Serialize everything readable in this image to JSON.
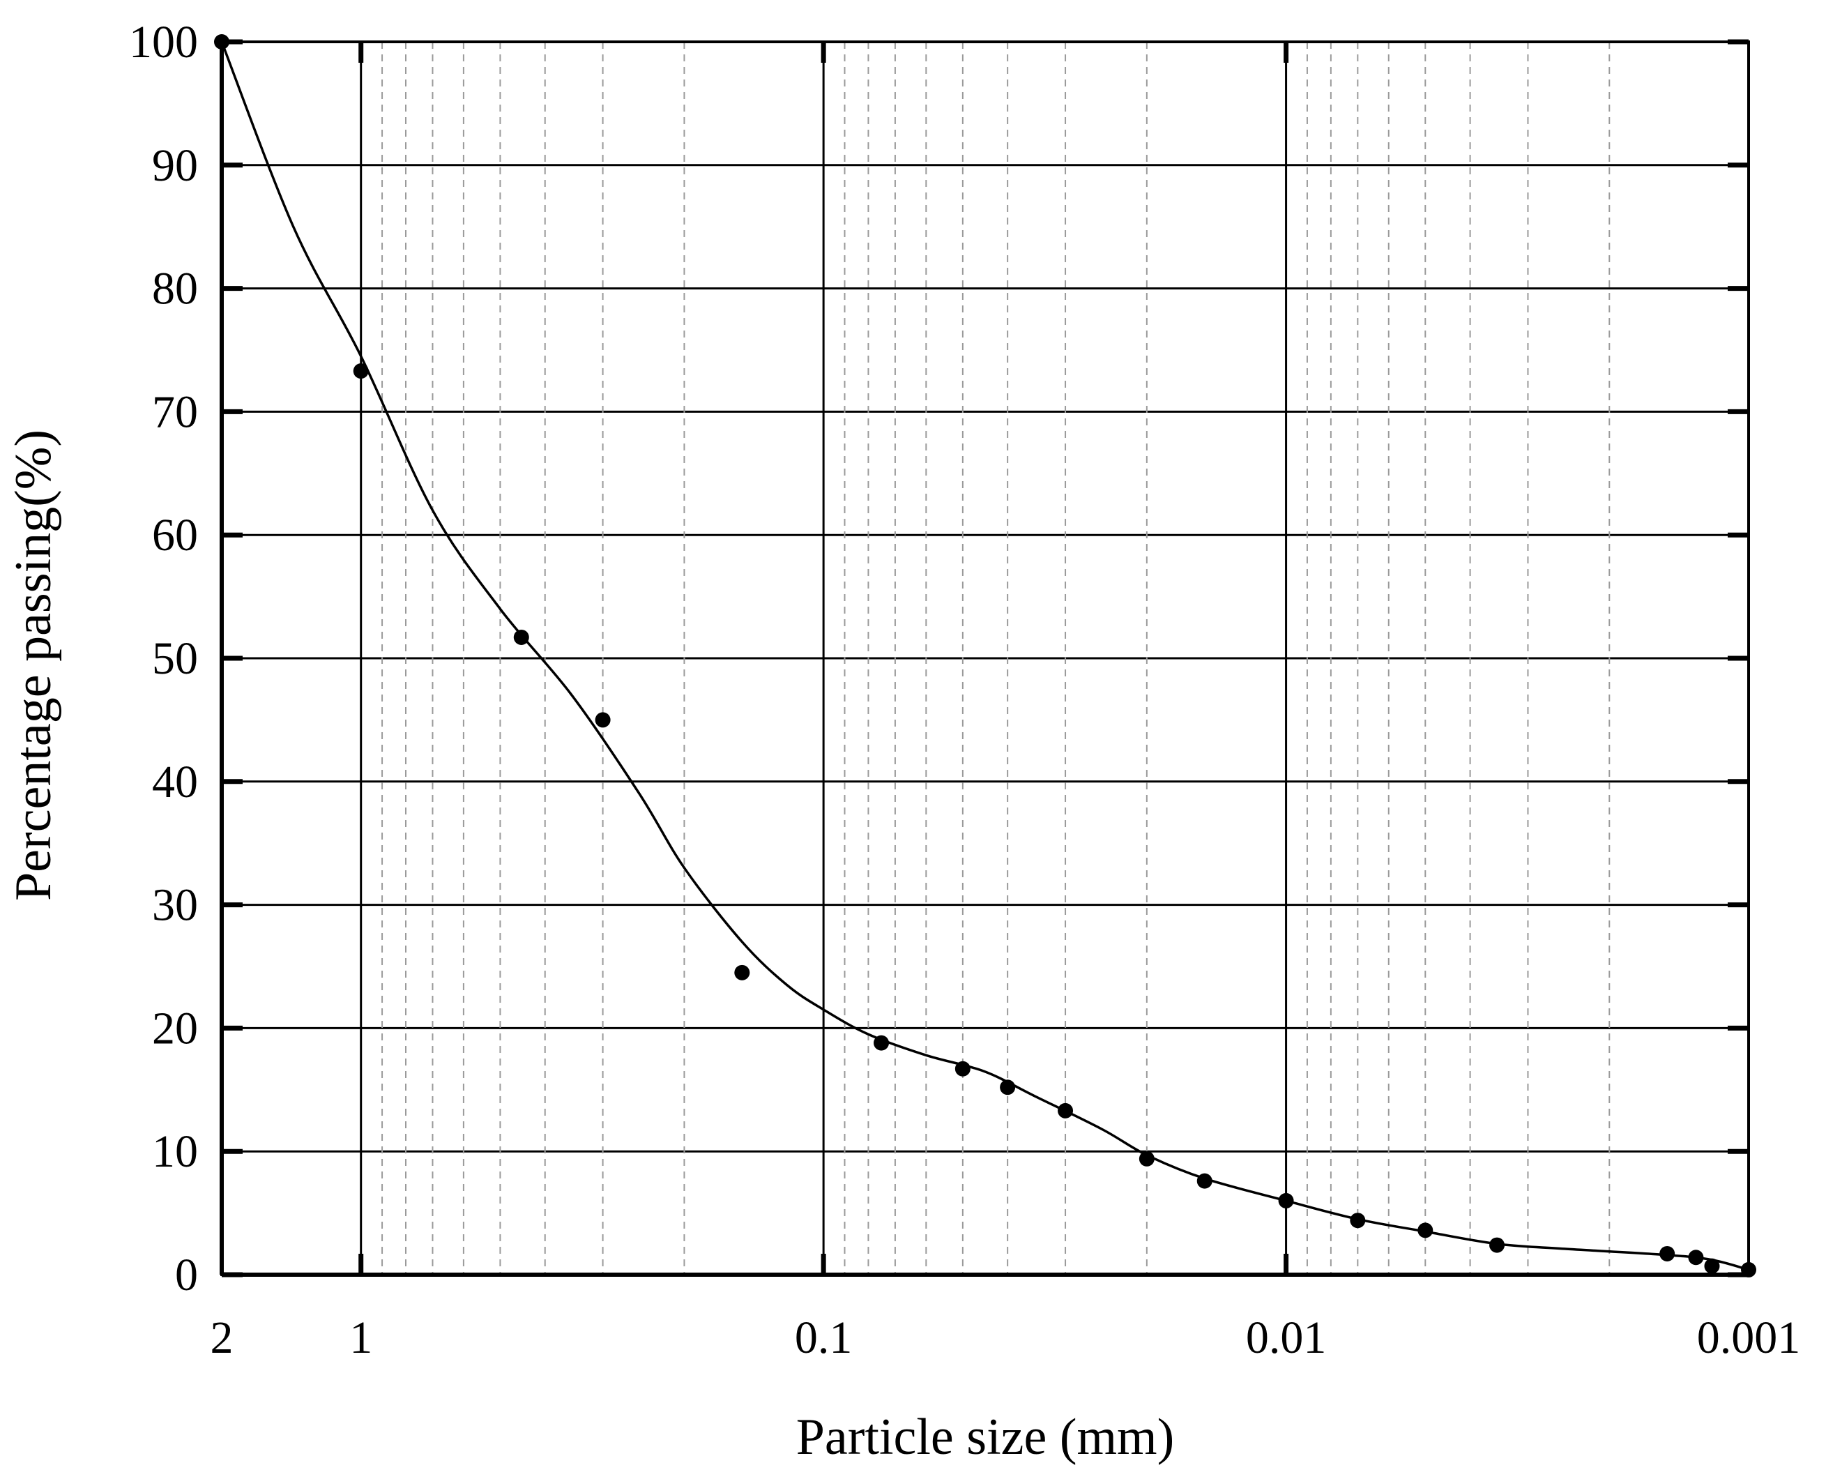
{
  "chart_data": {
    "type": "scatter",
    "title": "",
    "xlabel": "Particle size (mm)",
    "ylabel": "Percentage passing(%)",
    "x_scale": "log",
    "x_reversed": true,
    "xlim": [
      2,
      0.001
    ],
    "ylim": [
      0,
      100
    ],
    "x_ticks": [
      {
        "value": 2,
        "label": "2"
      },
      {
        "value": 1,
        "label": "1"
      },
      {
        "value": 0.1,
        "label": "0.1"
      },
      {
        "value": 0.01,
        "label": "0.01"
      },
      {
        "value": 0.001,
        "label": "0.001"
      }
    ],
    "y_ticks": [
      {
        "value": 0,
        "label": "0"
      },
      {
        "value": 10,
        "label": "10"
      },
      {
        "value": 20,
        "label": "20"
      },
      {
        "value": 30,
        "label": "30"
      },
      {
        "value": 40,
        "label": "40"
      },
      {
        "value": 50,
        "label": "50"
      },
      {
        "value": 60,
        "label": "60"
      },
      {
        "value": 70,
        "label": "70"
      },
      {
        "value": 80,
        "label": "80"
      },
      {
        "value": 90,
        "label": "90"
      },
      {
        "value": 100,
        "label": "100"
      }
    ],
    "grid": true,
    "legend": "none",
    "series": [
      {
        "kind": "points",
        "marker_color": "#000000",
        "points": [
          {
            "x": 2.0,
            "y": 100
          },
          {
            "x": 1.0,
            "y": 73.3
          },
          {
            "x": 0.45,
            "y": 51.7
          },
          {
            "x": 0.3,
            "y": 45.0
          },
          {
            "x": 0.15,
            "y": 24.5
          },
          {
            "x": 0.075,
            "y": 18.8
          },
          {
            "x": 0.05,
            "y": 16.7
          },
          {
            "x": 0.04,
            "y": 15.2
          },
          {
            "x": 0.03,
            "y": 13.3
          },
          {
            "x": 0.02,
            "y": 9.4
          },
          {
            "x": 0.015,
            "y": 7.6
          },
          {
            "x": 0.01,
            "y": 6.0
          },
          {
            "x": 0.007,
            "y": 4.4
          },
          {
            "x": 0.005,
            "y": 3.6
          },
          {
            "x": 0.0035,
            "y": 2.4
          },
          {
            "x": 0.0015,
            "y": 1.7
          },
          {
            "x": 0.0013,
            "y": 1.4
          },
          {
            "x": 0.0012,
            "y": 0.7
          },
          {
            "x": 0.001,
            "y": 0.4
          }
        ]
      },
      {
        "kind": "curve",
        "line_color": "#000000",
        "points": [
          {
            "x": 2.0,
            "y": 100
          },
          {
            "x": 1.4,
            "y": 85
          },
          {
            "x": 1.0,
            "y": 74.5
          },
          {
            "x": 0.7,
            "y": 62
          },
          {
            "x": 0.5,
            "y": 54
          },
          {
            "x": 0.35,
            "y": 47
          },
          {
            "x": 0.25,
            "y": 39
          },
          {
            "x": 0.2,
            "y": 33
          },
          {
            "x": 0.15,
            "y": 27
          },
          {
            "x": 0.12,
            "y": 23.5
          },
          {
            "x": 0.1,
            "y": 21.5
          },
          {
            "x": 0.08,
            "y": 19.5
          },
          {
            "x": 0.06,
            "y": 17.8
          },
          {
            "x": 0.045,
            "y": 16.5
          },
          {
            "x": 0.035,
            "y": 14.5
          },
          {
            "x": 0.025,
            "y": 11.8
          },
          {
            "x": 0.02,
            "y": 9.7
          },
          {
            "x": 0.015,
            "y": 7.8
          },
          {
            "x": 0.01,
            "y": 6.0
          },
          {
            "x": 0.007,
            "y": 4.5
          },
          {
            "x": 0.005,
            "y": 3.5
          },
          {
            "x": 0.0035,
            "y": 2.5
          },
          {
            "x": 0.0025,
            "y": 2.1
          },
          {
            "x": 0.0015,
            "y": 1.6
          },
          {
            "x": 0.0012,
            "y": 1.2
          },
          {
            "x": 0.001,
            "y": 0.4
          }
        ]
      }
    ]
  }
}
